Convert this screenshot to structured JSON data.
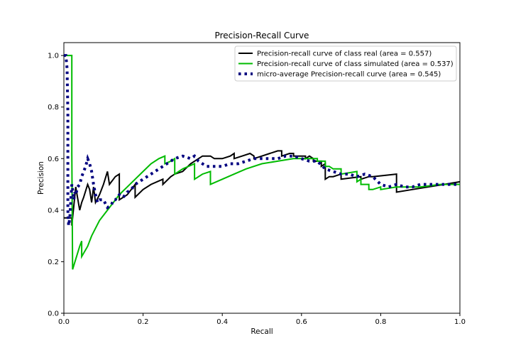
{
  "chart_data": {
    "type": "line",
    "title": "Precision-Recall Curve",
    "xlabel": "Recall",
    "ylabel": "Precision",
    "xlim": [
      0.0,
      1.0
    ],
    "ylim": [
      0.0,
      1.05
    ],
    "xticks": [
      "0.0",
      "0.2",
      "0.4",
      "0.6",
      "0.8",
      "1.0"
    ],
    "yticks": [
      "0.0",
      "0.2",
      "0.4",
      "0.6",
      "0.8",
      "1.0"
    ],
    "xtick_values": [
      0.0,
      0.2,
      0.4,
      0.6,
      0.8,
      1.0
    ],
    "ytick_values": [
      0.0,
      0.2,
      0.4,
      0.6,
      0.8,
      1.0
    ],
    "grid": false,
    "legend_position": "upper-right",
    "series": [
      {
        "name": "Precision-recall curve of class real (area = 0.557)",
        "color": "#000000",
        "style": "solid",
        "x": [
          0.0,
          0.02,
          0.02,
          0.03,
          0.04,
          0.045,
          0.05,
          0.06,
          0.065,
          0.07,
          0.075,
          0.08,
          0.09,
          0.1,
          0.11,
          0.115,
          0.12,
          0.13,
          0.14,
          0.14,
          0.16,
          0.17,
          0.18,
          0.18,
          0.2,
          0.22,
          0.25,
          0.25,
          0.27,
          0.28,
          0.3,
          0.32,
          0.34,
          0.35,
          0.37,
          0.38,
          0.4,
          0.42,
          0.43,
          0.43,
          0.45,
          0.47,
          0.48,
          0.48,
          0.5,
          0.52,
          0.54,
          0.55,
          0.55,
          0.57,
          0.58,
          0.58,
          0.6,
          0.61,
          0.61,
          0.62,
          0.63,
          0.63,
          0.64,
          0.65,
          0.65,
          0.66,
          0.66,
          0.67,
          0.68,
          0.7,
          0.7,
          0.75,
          0.75,
          0.77,
          0.78,
          0.84,
          0.84,
          0.88,
          0.92,
          0.96,
          1.0
        ],
        "y": [
          0.37,
          0.37,
          0.34,
          0.49,
          0.4,
          0.43,
          0.45,
          0.5,
          0.48,
          0.43,
          0.49,
          0.43,
          0.46,
          0.5,
          0.55,
          0.5,
          0.51,
          0.53,
          0.54,
          0.44,
          0.46,
          0.48,
          0.5,
          0.45,
          0.48,
          0.5,
          0.52,
          0.5,
          0.53,
          0.54,
          0.55,
          0.58,
          0.6,
          0.61,
          0.61,
          0.6,
          0.6,
          0.61,
          0.62,
          0.6,
          0.61,
          0.62,
          0.61,
          0.6,
          0.61,
          0.62,
          0.63,
          0.63,
          0.61,
          0.62,
          0.62,
          0.61,
          0.61,
          0.61,
          0.6,
          0.61,
          0.6,
          0.59,
          0.59,
          0.59,
          0.57,
          0.58,
          0.52,
          0.53,
          0.53,
          0.54,
          0.52,
          0.53,
          0.52,
          0.53,
          0.53,
          0.54,
          0.47,
          0.48,
          0.49,
          0.5,
          0.51
        ]
      },
      {
        "name": "Precision-recall curve of class simulated (area = 0.537)",
        "color": "#00bb00",
        "style": "solid",
        "x": [
          0.0,
          0.02,
          0.02,
          0.022,
          0.04,
          0.045,
          0.045,
          0.06,
          0.07,
          0.08,
          0.09,
          0.1,
          0.12,
          0.14,
          0.16,
          0.18,
          0.2,
          0.22,
          0.24,
          0.255,
          0.255,
          0.27,
          0.28,
          0.28,
          0.3,
          0.33,
          0.33,
          0.35,
          0.37,
          0.37,
          0.4,
          0.43,
          0.46,
          0.5,
          0.54,
          0.58,
          0.62,
          0.64,
          0.64,
          0.66,
          0.66,
          0.67,
          0.68,
          0.7,
          0.7,
          0.74,
          0.74,
          0.75,
          0.75,
          0.77,
          0.77,
          0.78,
          0.8,
          0.8,
          0.84,
          0.85,
          0.9,
          0.95,
          1.0
        ],
        "y": [
          1.0,
          1.0,
          0.62,
          0.17,
          0.26,
          0.28,
          0.22,
          0.26,
          0.3,
          0.33,
          0.36,
          0.38,
          0.42,
          0.46,
          0.49,
          0.52,
          0.55,
          0.58,
          0.6,
          0.61,
          0.58,
          0.59,
          0.6,
          0.54,
          0.56,
          0.58,
          0.52,
          0.54,
          0.55,
          0.5,
          0.52,
          0.54,
          0.56,
          0.58,
          0.59,
          0.6,
          0.6,
          0.6,
          0.59,
          0.59,
          0.57,
          0.57,
          0.56,
          0.56,
          0.54,
          0.55,
          0.51,
          0.52,
          0.5,
          0.5,
          0.48,
          0.48,
          0.49,
          0.48,
          0.49,
          0.49,
          0.49,
          0.5,
          0.5
        ]
      },
      {
        "name": "micro-average Precision-recall curve (area = 0.545)",
        "color": "#000080",
        "style": "dotted",
        "x": [
          0.0,
          0.005,
          0.008,
          0.01,
          0.01,
          0.01,
          0.012,
          0.015,
          0.018,
          0.02,
          0.022,
          0.025,
          0.028,
          0.03,
          0.035,
          0.04,
          0.045,
          0.05,
          0.055,
          0.06,
          0.065,
          0.07,
          0.075,
          0.08,
          0.085,
          0.09,
          0.1,
          0.11,
          0.12,
          0.125,
          0.13,
          0.14,
          0.15,
          0.16,
          0.17,
          0.18,
          0.2,
          0.22,
          0.24,
          0.26,
          0.28,
          0.3,
          0.32,
          0.33,
          0.34,
          0.36,
          0.38,
          0.4,
          0.42,
          0.44,
          0.46,
          0.48,
          0.5,
          0.52,
          0.54,
          0.56,
          0.58,
          0.6,
          0.62,
          0.64,
          0.66,
          0.68,
          0.7,
          0.72,
          0.74,
          0.76,
          0.78,
          0.8,
          0.82,
          0.84,
          0.86,
          0.88,
          0.9,
          0.92,
          0.94,
          0.96,
          0.98,
          1.0
        ],
        "y": [
          1.0,
          1.0,
          0.95,
          0.78,
          0.52,
          0.4,
          0.34,
          0.37,
          0.45,
          0.5,
          0.48,
          0.44,
          0.47,
          0.46,
          0.49,
          0.5,
          0.53,
          0.55,
          0.57,
          0.6,
          0.58,
          0.55,
          0.5,
          0.46,
          0.43,
          0.44,
          0.44,
          0.41,
          0.42,
          0.44,
          0.44,
          0.46,
          0.45,
          0.47,
          0.48,
          0.5,
          0.52,
          0.54,
          0.56,
          0.58,
          0.6,
          0.61,
          0.6,
          0.61,
          0.59,
          0.57,
          0.57,
          0.57,
          0.58,
          0.58,
          0.59,
          0.6,
          0.6,
          0.6,
          0.6,
          0.61,
          0.61,
          0.6,
          0.59,
          0.59,
          0.56,
          0.55,
          0.54,
          0.54,
          0.53,
          0.54,
          0.53,
          0.5,
          0.49,
          0.5,
          0.49,
          0.49,
          0.5,
          0.5,
          0.5,
          0.5,
          0.5,
          0.5
        ]
      }
    ]
  }
}
